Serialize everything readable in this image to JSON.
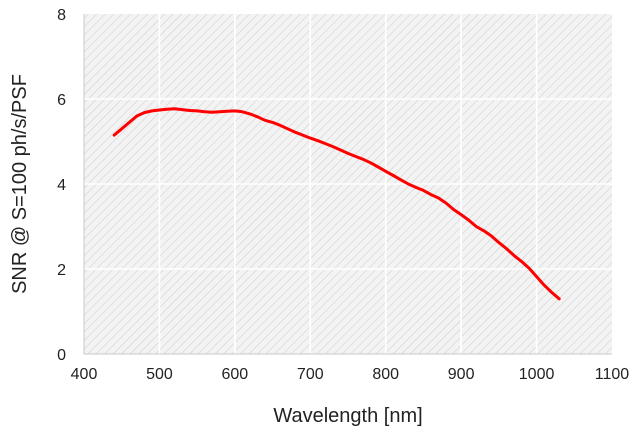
{
  "chart_data": {
    "type": "line",
    "title": "",
    "xlabel": "Wavelength [nm]",
    "ylabel": "SNR @ S=100 ph/s/PSF",
    "xlim": [
      400,
      1100
    ],
    "ylim": [
      0,
      8
    ],
    "xticks": [
      400,
      500,
      600,
      700,
      800,
      900,
      1000,
      1100
    ],
    "yticks": [
      0,
      2,
      4,
      6,
      8
    ],
    "xtick_labels": [
      "400",
      "500",
      "600",
      "700",
      "800",
      "900",
      "1000",
      "1100"
    ],
    "ytick_labels": [
      "0",
      "2",
      "4",
      "6",
      "8"
    ],
    "grid": true,
    "background": "hatched light gray",
    "series": [
      {
        "color": "#ff0000",
        "x": [
          440,
          450,
          460,
          470,
          480,
          490,
          500,
          510,
          520,
          530,
          540,
          550,
          560,
          570,
          580,
          590,
          600,
          610,
          620,
          630,
          640,
          650,
          660,
          670,
          680,
          690,
          700,
          710,
          720,
          730,
          740,
          750,
          760,
          770,
          780,
          790,
          800,
          810,
          820,
          830,
          840,
          850,
          860,
          870,
          880,
          890,
          900,
          910,
          920,
          930,
          940,
          950,
          960,
          970,
          980,
          990,
          1000,
          1010,
          1020,
          1030
        ],
        "y": [
          5.15,
          5.3,
          5.45,
          5.6,
          5.68,
          5.72,
          5.74,
          5.76,
          5.77,
          5.75,
          5.73,
          5.72,
          5.7,
          5.69,
          5.7,
          5.71,
          5.72,
          5.7,
          5.65,
          5.58,
          5.5,
          5.45,
          5.38,
          5.3,
          5.22,
          5.15,
          5.08,
          5.02,
          4.95,
          4.88,
          4.8,
          4.72,
          4.65,
          4.58,
          4.5,
          4.4,
          4.3,
          4.2,
          4.1,
          4.0,
          3.92,
          3.85,
          3.75,
          3.67,
          3.55,
          3.4,
          3.28,
          3.15,
          3.0,
          2.9,
          2.78,
          2.62,
          2.48,
          2.32,
          2.18,
          2.02,
          1.82,
          1.62,
          1.45,
          1.3
        ]
      }
    ]
  }
}
